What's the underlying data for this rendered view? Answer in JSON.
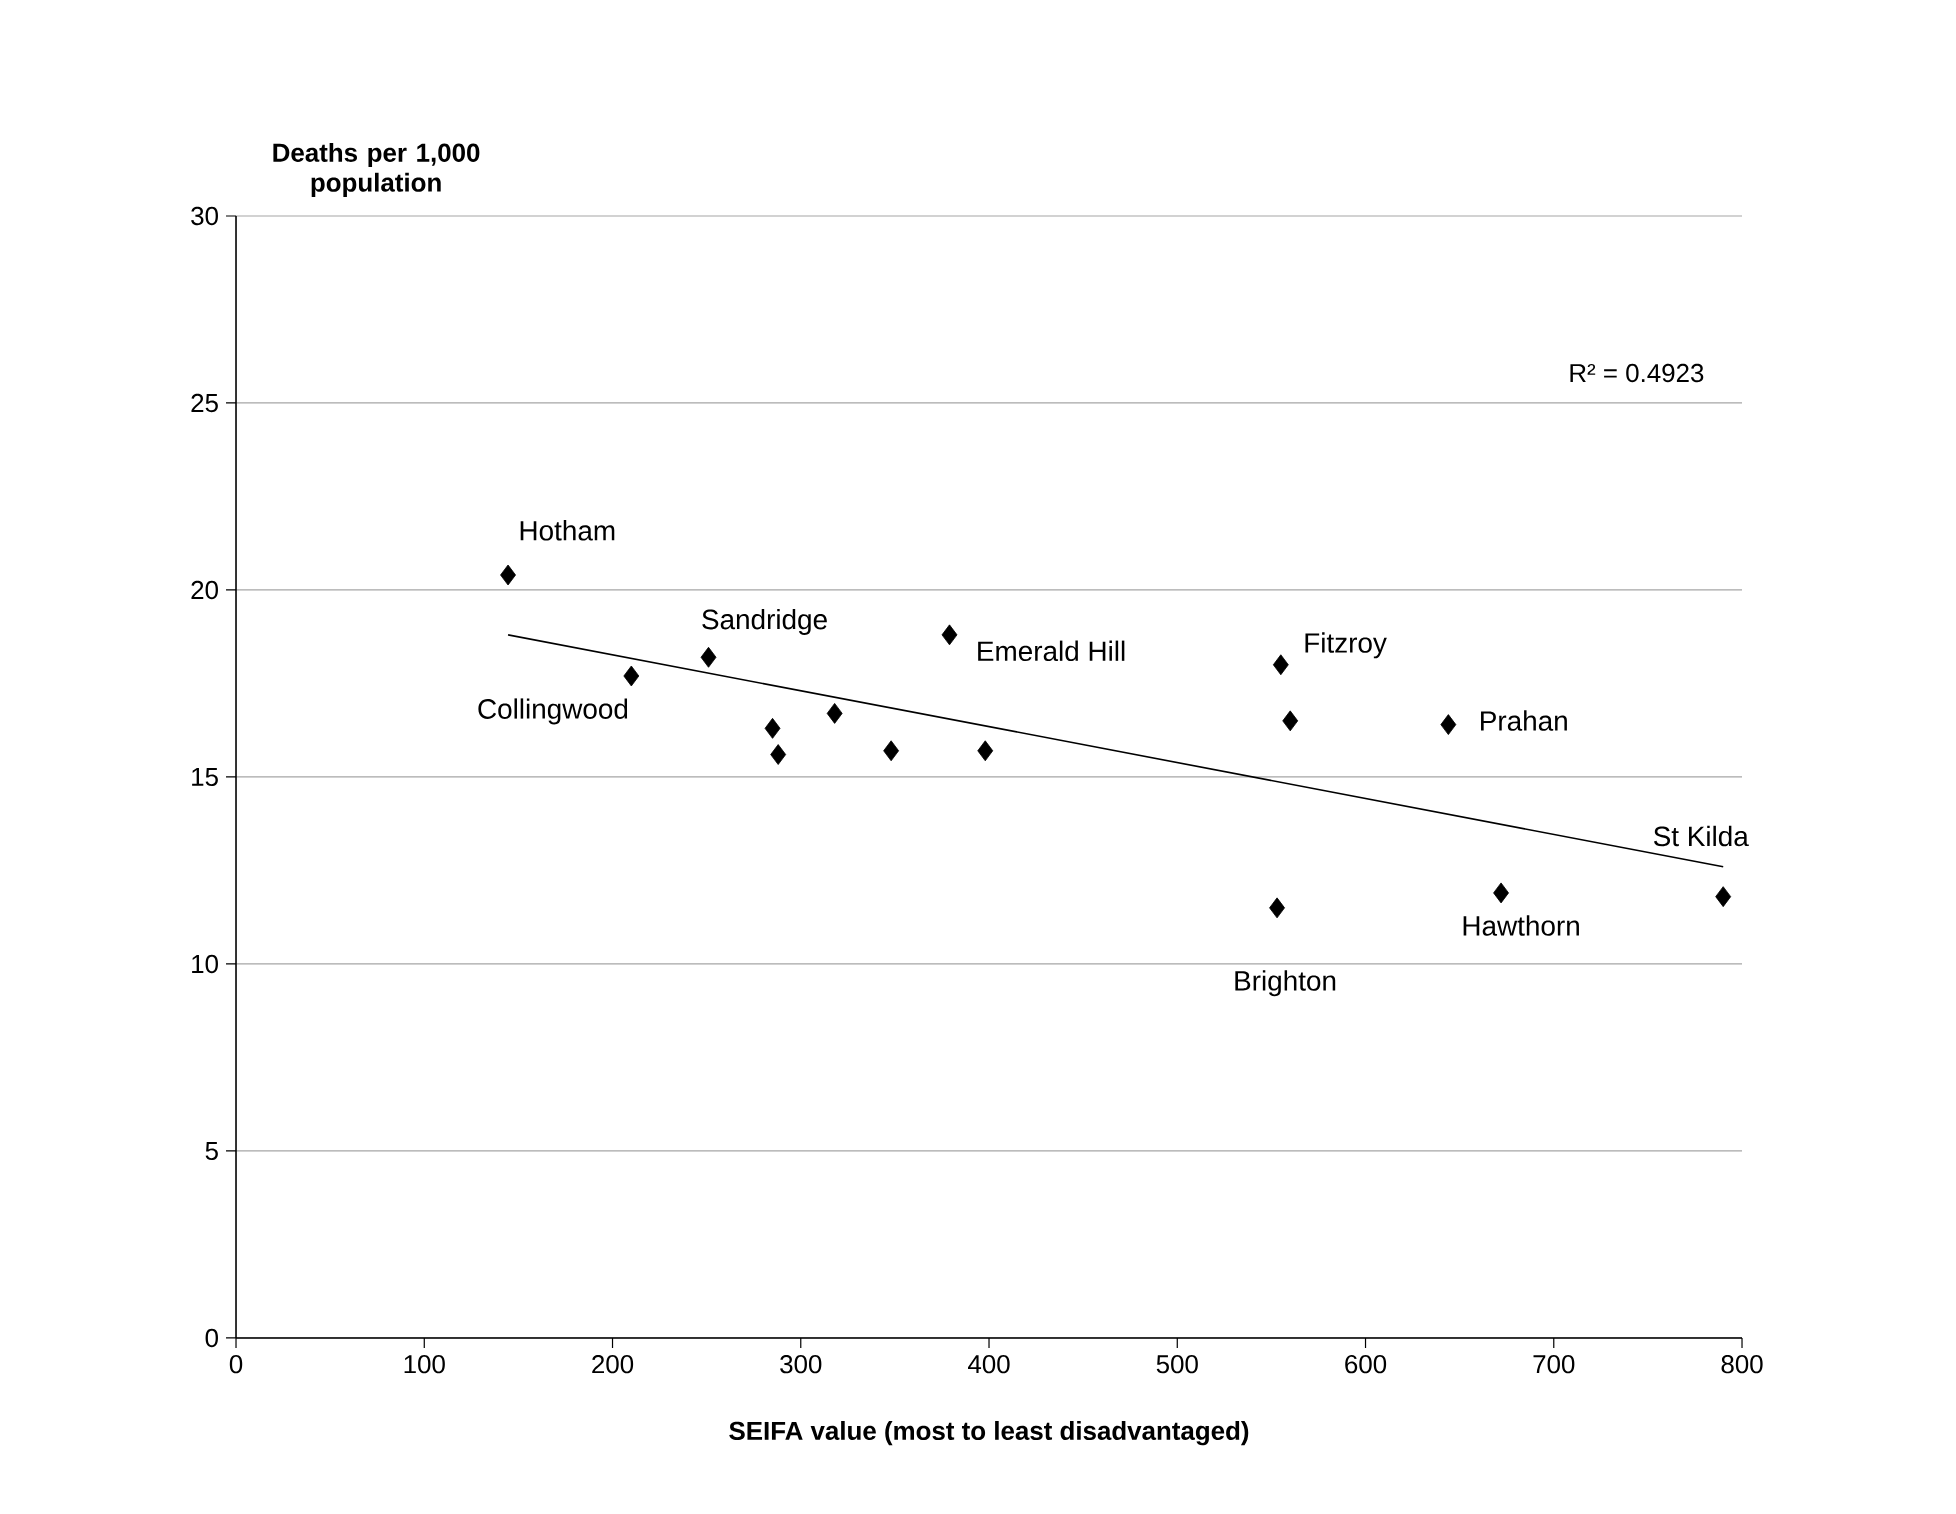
{
  "chart_data": {
    "type": "scatter",
    "xlabel": "SEIFA value (most to least disadvantaged)",
    "ylabel": "Deaths per 1,000 population",
    "xlim": [
      0,
      800
    ],
    "xticks": [
      0,
      100,
      200,
      300,
      400,
      500,
      600,
      700,
      800
    ],
    "ylim": [
      0,
      30
    ],
    "yticks": [
      0,
      5,
      10,
      15,
      20,
      25,
      30
    ],
    "grid": "y",
    "marker": "diamond",
    "series": [
      {
        "color": "#000000",
        "x": [
          144.5,
          210,
          251,
          379,
          285,
          288,
          318,
          348,
          398,
          555,
          560,
          644,
          553,
          672,
          790
        ],
        "values": [
          20.4,
          17.7,
          18.2,
          18.8,
          16.3,
          15.6,
          16.7,
          15.7,
          15.7,
          18.0,
          16.5,
          16.4,
          11.5,
          11.9,
          11.8
        ]
      },
      {
        "type": "line",
        "marker": "none",
        "color": "#000000",
        "x": [
          144.5,
          790
        ],
        "values": [
          18.8,
          12.6
        ]
      }
    ],
    "annotations": [
      "R² = 0.4923",
      {
        "text": "Hotham",
        "x": 144.5,
        "y": 20.4
      },
      {
        "text": "Collingwood",
        "x": 210,
        "y": 17.7
      },
      {
        "text": "Sandridge",
        "x": 251,
        "y": 18.2
      },
      {
        "text": "Emerald Hill",
        "x": 379,
        "y": 18.8
      },
      {
        "text": "Fitzroy",
        "x": 555,
        "y": 18.0
      },
      {
        "text": "Prahan",
        "x": 644,
        "y": 16.4
      },
      {
        "text": "Brighton",
        "x": 553,
        "y": 11.5
      },
      {
        "text": "Hawthorn",
        "x": 672,
        "y": 11.9
      },
      {
        "text": "St Kilda",
        "x": 790,
        "y": 11.8
      }
    ]
  }
}
